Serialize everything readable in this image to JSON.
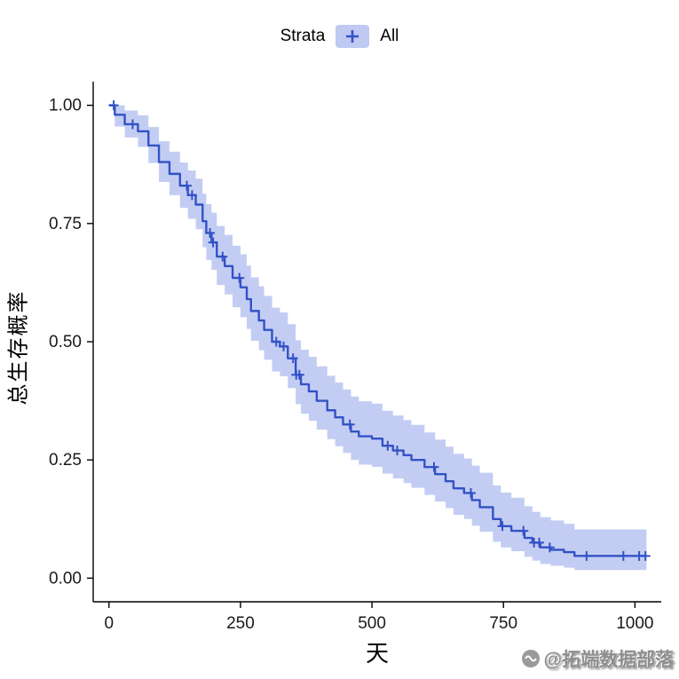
{
  "page": {
    "background": "#ffffff"
  },
  "legend": {
    "title": "Strata",
    "entries": [
      {
        "label": "All",
        "line_color": "#3352c6",
        "key_fill": "#bfc9f2"
      }
    ]
  },
  "axes": {
    "x": {
      "label": "天",
      "tick_labels": [
        "0",
        "250",
        "500",
        "750",
        "1000"
      ]
    },
    "y": {
      "label": "总生存概率",
      "tick_labels": [
        "0.00",
        "0.25",
        "0.50",
        "0.75",
        "1.00"
      ]
    }
  },
  "watermark": {
    "text": "@拓端数据部落"
  },
  "chart_data": {
    "type": "line",
    "subtype": "kaplan-meier-step-with-confidence-band",
    "title": "",
    "legend_title": "Strata",
    "legend_position": "top",
    "xlabel": "天",
    "ylabel": "总生存概率",
    "xlim": [
      -30,
      1050
    ],
    "ylim": [
      -0.05,
      1.05
    ],
    "xticks": [
      0,
      250,
      500,
      750,
      1000
    ],
    "yticks": [
      0,
      0.25,
      0.5,
      0.75,
      1.0
    ],
    "ytick_labels": [
      "0.00",
      "0.25",
      "0.50",
      "0.75",
      "1.00"
    ],
    "grid": false,
    "series": [
      {
        "name": "All",
        "color": "#3352c6",
        "ci_fill": "#c0caf2",
        "t": [
          0,
          11,
          30,
          55,
          75,
          95,
          115,
          135,
          150,
          165,
          178,
          185,
          195,
          205,
          220,
          235,
          250,
          262,
          270,
          285,
          295,
          310,
          325,
          340,
          355,
          365,
          380,
          395,
          415,
          430,
          445,
          460,
          475,
          500,
          520,
          540,
          560,
          575,
          600,
          620,
          640,
          655,
          675,
          690,
          705,
          730,
          745,
          765,
          790,
          805,
          820,
          840,
          865,
          885,
          1022
        ],
        "s": [
          1.0,
          0.98,
          0.96,
          0.945,
          0.915,
          0.88,
          0.855,
          0.83,
          0.81,
          0.79,
          0.755,
          0.73,
          0.71,
          0.68,
          0.66,
          0.635,
          0.615,
          0.59,
          0.565,
          0.545,
          0.525,
          0.5,
          0.49,
          0.465,
          0.43,
          0.41,
          0.395,
          0.375,
          0.355,
          0.34,
          0.325,
          0.31,
          0.3,
          0.295,
          0.28,
          0.27,
          0.26,
          0.25,
          0.235,
          0.22,
          0.205,
          0.19,
          0.18,
          0.165,
          0.15,
          0.125,
          0.11,
          0.1,
          0.085,
          0.075,
          0.065,
          0.06,
          0.055,
          0.047,
          0.047
        ],
        "lo": [
          1.0,
          0.955,
          0.932,
          0.912,
          0.878,
          0.838,
          0.81,
          0.783,
          0.76,
          0.738,
          0.7,
          0.673,
          0.652,
          0.62,
          0.6,
          0.573,
          0.552,
          0.527,
          0.502,
          0.482,
          0.462,
          0.437,
          0.427,
          0.402,
          0.368,
          0.348,
          0.333,
          0.314,
          0.294,
          0.279,
          0.265,
          0.25,
          0.24,
          0.235,
          0.221,
          0.211,
          0.201,
          0.191,
          0.176,
          0.162,
          0.148,
          0.134,
          0.125,
          0.111,
          0.098,
          0.077,
          0.065,
          0.057,
          0.045,
          0.037,
          0.03,
          0.026,
          0.022,
          0.017,
          0.017
        ],
        "hi": [
          1.0,
          1.0,
          0.989,
          0.979,
          0.954,
          0.924,
          0.902,
          0.879,
          0.862,
          0.845,
          0.813,
          0.791,
          0.773,
          0.745,
          0.726,
          0.703,
          0.685,
          0.661,
          0.636,
          0.617,
          0.597,
          0.572,
          0.562,
          0.537,
          0.503,
          0.483,
          0.468,
          0.448,
          0.428,
          0.414,
          0.399,
          0.384,
          0.374,
          0.369,
          0.354,
          0.344,
          0.334,
          0.324,
          0.308,
          0.293,
          0.278,
          0.263,
          0.253,
          0.238,
          0.223,
          0.196,
          0.181,
          0.17,
          0.152,
          0.14,
          0.129,
          0.122,
          0.115,
          0.103,
          0.103
        ],
        "censor_t": [
          9,
          45,
          148,
          158,
          192,
          198,
          216,
          248,
          318,
          332,
          350,
          356,
          362,
          458,
          530,
          548,
          618,
          688,
          748,
          788,
          808,
          818,
          838,
          908,
          978,
          1008,
          1020
        ]
      }
    ]
  }
}
